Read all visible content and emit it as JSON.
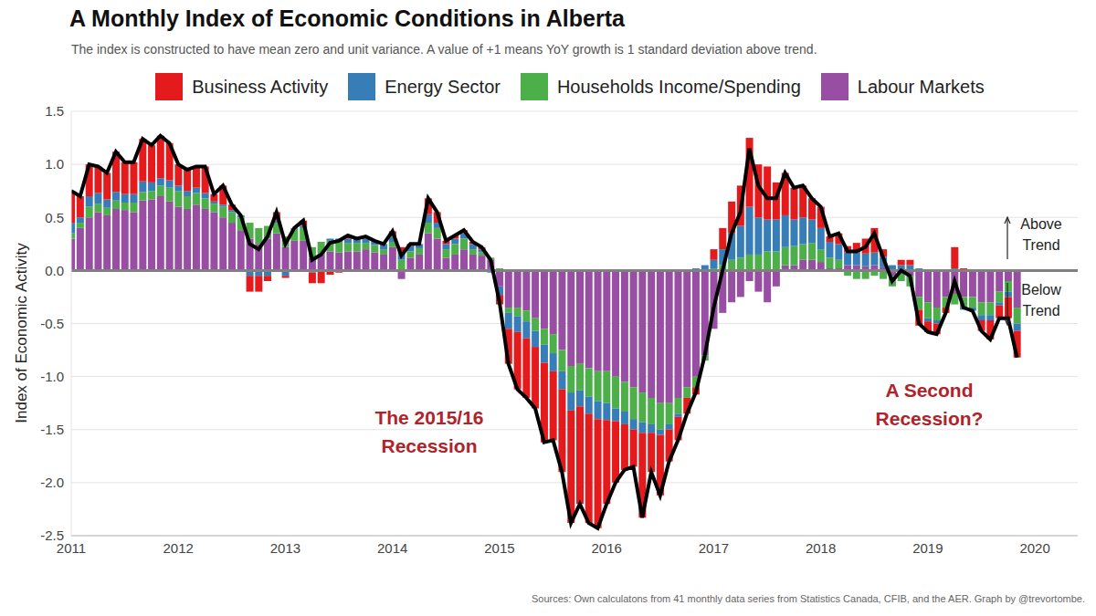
{
  "chart_data": {
    "type": "bar",
    "stacked": true,
    "title": "A Monthly Index of Economic Conditions in Alberta",
    "subtitle": "The index is constructed to have mean zero and unit variance. A value of +1 means YoY growth is 1 standard deviation above trend.",
    "ylabel": "Index of Economic Activity",
    "annotations": [
      "The 2015/16 Recession",
      "A Second Recession?",
      "Above Trend",
      "Below Trend"
    ],
    "source": "Sources: Own calculatons from 41 monthly data series from Statistics Canada, CFIB, and the AER. Graph by @trevortombe.",
    "grid": true,
    "legend": "top",
    "x": [
      2011,
      2011.083,
      2011.167,
      2011.25,
      2011.333,
      2011.417,
      2011.5,
      2011.583,
      2011.667,
      2011.75,
      2011.833,
      2011.917,
      2012,
      2012.083,
      2012.167,
      2012.25,
      2012.333,
      2012.417,
      2012.5,
      2012.583,
      2012.667,
      2012.75,
      2012.833,
      2012.917,
      2013,
      2013.083,
      2013.167,
      2013.25,
      2013.333,
      2013.417,
      2013.5,
      2013.583,
      2013.667,
      2013.75,
      2013.833,
      2013.917,
      2014,
      2014.083,
      2014.167,
      2014.25,
      2014.333,
      2014.417,
      2014.5,
      2014.583,
      2014.667,
      2014.75,
      2014.833,
      2014.917,
      2015,
      2015.083,
      2015.167,
      2015.25,
      2015.333,
      2015.417,
      2015.5,
      2015.583,
      2015.667,
      2015.75,
      2015.833,
      2015.917,
      2016,
      2016.083,
      2016.167,
      2016.25,
      2016.333,
      2016.417,
      2016.5,
      2016.583,
      2016.667,
      2016.75,
      2016.833,
      2016.917,
      2017,
      2017.083,
      2017.167,
      2017.25,
      2017.333,
      2017.417,
      2017.5,
      2017.583,
      2017.667,
      2017.75,
      2017.833,
      2017.917,
      2018,
      2018.083,
      2018.167,
      2018.25,
      2018.333,
      2018.417,
      2018.5,
      2018.583,
      2018.667,
      2018.75,
      2018.833,
      2018.917,
      2019,
      2019.083,
      2019.167,
      2019.25,
      2019.333,
      2019.417,
      2019.5,
      2019.583,
      2019.667,
      2019.75,
      2019.833
    ],
    "xlim": [
      2011,
      2020.4
    ],
    "xticks": [
      2011,
      2012,
      2013,
      2014,
      2015,
      2016,
      2017,
      2018,
      2019,
      2020
    ],
    "ylim": [
      -2.5,
      1.5
    ],
    "yticks": [
      -2.5,
      {
        "value": -2,
        "label": "-2.0"
      },
      -1.5,
      {
        "value": -1,
        "label": "-1.0"
      },
      -0.5,
      {
        "value": 0,
        "label": "0.0"
      },
      0.5,
      {
        "value": 1,
        "label": "1.0"
      },
      1.5
    ],
    "series": [
      {
        "name": "Business Activity",
        "color": "#e41a1c",
        "values": [
          0.3,
          0.2,
          0.3,
          0.25,
          0.25,
          0.38,
          0.3,
          0.3,
          0.4,
          0.35,
          0.4,
          0.35,
          0.2,
          0.2,
          0.2,
          0.25,
          0.07,
          0.18,
          0.05,
          0,
          -0.15,
          -0.15,
          -0.05,
          0.08,
          -0.02,
          0,
          0.05,
          -0.1,
          -0.12,
          -0.04,
          -0.02,
          0.03,
          0,
          0.02,
          0,
          0,
          0.05,
          0.04,
          0.02,
          0,
          0.15,
          0.1,
          0.03,
          0.03,
          0.03,
          0.02,
          0.02,
          0,
          -0.09,
          -0.33,
          -0.54,
          -0.56,
          -0.58,
          -0.75,
          -0.65,
          -0.78,
          -1.06,
          -0.92,
          -1.03,
          -1.03,
          -0.79,
          -0.58,
          -0.43,
          -0.35,
          -0.8,
          -0.37,
          -0.57,
          -0.3,
          -0.22,
          -0.15,
          -0.07,
          0,
          0.1,
          0.2,
          0.3,
          0.38,
          0.65,
          0.5,
          0.5,
          0.35,
          0.4,
          0.3,
          0.3,
          0.2,
          0.2,
          0.05,
          0.1,
          0.06,
          0.09,
          0.14,
          0.23,
          0.07,
          0,
          0.05,
          0.05,
          -0.15,
          -0.1,
          -0.1,
          -0.05,
          0.2,
          0.02,
          0,
          -0.1,
          -0.18,
          -0.12,
          -0.2,
          -0.25
        ]
      },
      {
        "name": "Energy Sector",
        "color": "#377eb8",
        "values": [
          0.1,
          0.05,
          0.1,
          0.1,
          0.08,
          0.08,
          0.08,
          0.08,
          0.1,
          0.08,
          0.07,
          0.07,
          0.05,
          0.05,
          0.05,
          0.05,
          0.02,
          0.02,
          0.02,
          0.02,
          -0.05,
          -0.05,
          -0.05,
          0.02,
          -0.05,
          0,
          0.02,
          -0.02,
          0,
          0.02,
          0.03,
          0.04,
          0.04,
          0.04,
          0.04,
          0.05,
          0.05,
          0.08,
          0.05,
          0.04,
          0.08,
          0.05,
          0.05,
          0.05,
          0.05,
          0.05,
          0.03,
          -0.02,
          -0.08,
          -0.15,
          -0.15,
          -0.16,
          -0.15,
          -0.17,
          -0.17,
          -0.17,
          -0.17,
          -0.15,
          -0.16,
          -0.17,
          -0.16,
          -0.12,
          -0.12,
          -0.1,
          -0.1,
          -0.08,
          -0.05,
          -0.05,
          -0.03,
          0,
          0.02,
          0.05,
          0.08,
          0.15,
          0.25,
          0.3,
          0.45,
          0.35,
          0.3,
          0.3,
          0.3,
          0.25,
          0.25,
          0.22,
          0.2,
          0.15,
          0.15,
          0.12,
          0.12,
          0.12,
          0.12,
          0.1,
          0.05,
          0.05,
          0.05,
          0.02,
          -0.03,
          -0.03,
          0,
          0.02,
          -0.02,
          -0.03,
          -0.05,
          -0.05,
          -0.03,
          -0.05,
          -0.07
        ]
      },
      {
        "name": "Households Income/Spending",
        "color": "#4daf4a",
        "values": [
          0.05,
          0.05,
          0.1,
          0.08,
          0.07,
          0.08,
          0.07,
          0.09,
          0.08,
          0.08,
          0.1,
          0.13,
          0.15,
          0.12,
          0.11,
          0.1,
          0.08,
          0.1,
          0.1,
          0.12,
          0.15,
          0.15,
          0.12,
          0.1,
          0.1,
          0.12,
          0.12,
          0.1,
          0.12,
          0.1,
          0.1,
          0.08,
          0.08,
          0.06,
          0.07,
          0.05,
          0.05,
          0.1,
          0.06,
          0.06,
          0.1,
          0.1,
          0.08,
          0.1,
          0.1,
          0.05,
          0.03,
          0.02,
          0.02,
          -0.05,
          -0.08,
          -0.1,
          -0.12,
          -0.15,
          -0.18,
          -0.2,
          -0.25,
          -0.25,
          -0.27,
          -0.28,
          -0.3,
          -0.3,
          -0.28,
          -0.3,
          -0.28,
          -0.25,
          -0.25,
          -0.2,
          -0.15,
          -0.1,
          -0.1,
          -0.05,
          0.02,
          0.05,
          0.1,
          0.12,
          0.15,
          0.15,
          0.18,
          0.18,
          0.17,
          0.18,
          0.15,
          0.16,
          0.12,
          0.1,
          0.08,
          -0.05,
          -0.08,
          -0.08,
          -0.05,
          -0.08,
          -0.1,
          -0.08,
          -0.1,
          -0.12,
          -0.15,
          -0.12,
          -0.1,
          -0.1,
          -0.1,
          -0.1,
          -0.12,
          -0.12,
          -0.1,
          -0.1,
          -0.15
        ]
      },
      {
        "name": "Labour Markets",
        "color": "#984ea3",
        "values": [
          0.3,
          0.4,
          0.5,
          0.55,
          0.52,
          0.58,
          0.57,
          0.55,
          0.66,
          0.67,
          0.7,
          0.65,
          0.6,
          0.58,
          0.62,
          0.58,
          0.55,
          0.5,
          0.45,
          0.38,
          0.3,
          0.25,
          0.3,
          0.35,
          0.22,
          0.28,
          0.28,
          0.12,
          0.15,
          0.18,
          0.17,
          0.18,
          0.18,
          0.2,
          0.17,
          0.15,
          0.22,
          -0.08,
          0.12,
          0.15,
          0.35,
          0.3,
          0.12,
          0.15,
          0.2,
          0.15,
          0.14,
          0.1,
          -0.15,
          -0.35,
          -0.35,
          -0.38,
          -0.45,
          -0.55,
          -0.6,
          -0.75,
          -0.9,
          -0.88,
          -0.92,
          -0.95,
          -0.95,
          -1,
          -1.05,
          -1.1,
          -1.15,
          -1.2,
          -1.25,
          -1.25,
          -1.2,
          -1.1,
          -1,
          -0.8,
          -0.55,
          -0.4,
          -0.3,
          -0.25,
          -0.1,
          -0.2,
          -0.3,
          -0.15,
          0.05,
          0.05,
          0.1,
          0.1,
          0.08,
          0.02,
          0.02,
          0.05,
          0.05,
          0.04,
          0.05,
          0.03,
          -0.05,
          -0.02,
          -0.05,
          -0.25,
          -0.3,
          -0.35,
          -0.25,
          -0.22,
          -0.25,
          -0.25,
          -0.3,
          -0.3,
          -0.2,
          -0.1,
          -0.35
        ]
      }
    ]
  }
}
